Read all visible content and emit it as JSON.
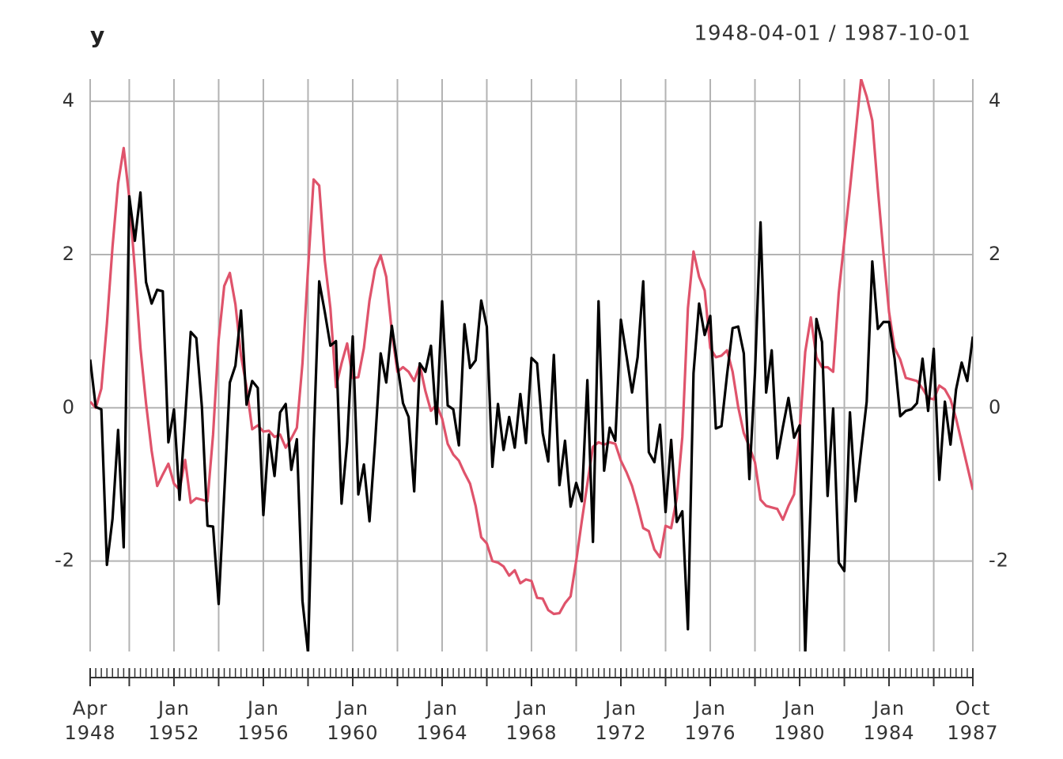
{
  "chart_data": {
    "type": "line",
    "title": "y",
    "subtitle": "1948-04-01 / 1987-10-01",
    "x": [
      "1948-04",
      "1948-07",
      "1948-10",
      "1949-01",
      "1949-04",
      "1949-07",
      "1949-10",
      "1950-01",
      "1950-04",
      "1950-07",
      "1950-10",
      "1951-01",
      "1951-04",
      "1951-07",
      "1951-10",
      "1952-01",
      "1952-04",
      "1952-07",
      "1952-10",
      "1953-01",
      "1953-04",
      "1953-07",
      "1953-10",
      "1954-01",
      "1954-04",
      "1954-07",
      "1954-10",
      "1955-01",
      "1955-04",
      "1955-07",
      "1955-10",
      "1956-01",
      "1956-04",
      "1956-07",
      "1956-10",
      "1957-01",
      "1957-04",
      "1957-07",
      "1957-10",
      "1958-01",
      "1958-04",
      "1958-07",
      "1958-10",
      "1959-01",
      "1959-04",
      "1959-07",
      "1959-10",
      "1960-01",
      "1960-04",
      "1960-07",
      "1960-10",
      "1961-01",
      "1961-04",
      "1961-07",
      "1961-10",
      "1962-01",
      "1962-04",
      "1962-07",
      "1962-10",
      "1963-01",
      "1963-04",
      "1963-07",
      "1963-10",
      "1964-01",
      "1964-04",
      "1964-07",
      "1964-10",
      "1965-01",
      "1965-04",
      "1965-07",
      "1965-10",
      "1966-01",
      "1966-04",
      "1966-07",
      "1966-10",
      "1967-01",
      "1967-04",
      "1967-07",
      "1967-10",
      "1968-01",
      "1968-04",
      "1968-07",
      "1968-10",
      "1969-01",
      "1969-04",
      "1969-07",
      "1969-10",
      "1970-01",
      "1970-04",
      "1970-07",
      "1970-10",
      "1971-01",
      "1971-04",
      "1971-07",
      "1971-10",
      "1972-01",
      "1972-04",
      "1972-07",
      "1972-10",
      "1973-01",
      "1973-04",
      "1973-07",
      "1973-10",
      "1974-01",
      "1974-04",
      "1974-07",
      "1974-10",
      "1975-01",
      "1975-04",
      "1975-07",
      "1975-10",
      "1976-01",
      "1976-04",
      "1976-07",
      "1976-10",
      "1977-01",
      "1977-04",
      "1977-07",
      "1977-10",
      "1978-01",
      "1978-04",
      "1978-07",
      "1978-10",
      "1979-01",
      "1979-04",
      "1979-07",
      "1979-10",
      "1980-01",
      "1980-04",
      "1980-07",
      "1980-10",
      "1981-01",
      "1981-04",
      "1981-07",
      "1981-10",
      "1982-01",
      "1982-04",
      "1982-07",
      "1982-10",
      "1983-01",
      "1983-04",
      "1983-07",
      "1983-10",
      "1984-01",
      "1984-04",
      "1984-07",
      "1984-10",
      "1985-01",
      "1985-04",
      "1985-07",
      "1985-10",
      "1986-01",
      "1986-04",
      "1986-07",
      "1986-10",
      "1987-01",
      "1987-04",
      "1987-07",
      "1987-10"
    ],
    "series": [
      {
        "color": "#DF536B",
        "values": [
          0.08,
          0.0,
          0.25,
          1.1,
          2.1,
          2.93,
          3.39,
          2.74,
          1.8,
          0.78,
          0.06,
          -0.56,
          -1.02,
          -0.87,
          -0.73,
          -0.99,
          -1.07,
          -0.68,
          -1.24,
          -1.18,
          -1.2,
          -1.22,
          -0.35,
          0.89,
          1.59,
          1.76,
          1.35,
          0.68,
          0.27,
          -0.28,
          -0.23,
          -0.31,
          -0.3,
          -0.38,
          -0.35,
          -0.52,
          -0.4,
          -0.26,
          0.58,
          1.81,
          2.98,
          2.9,
          1.92,
          1.3,
          0.27,
          0.58,
          0.84,
          0.39,
          0.4,
          0.78,
          1.4,
          1.81,
          1.99,
          1.71,
          0.99,
          0.47,
          0.53,
          0.47,
          0.35,
          0.56,
          0.22,
          -0.04,
          0.04,
          -0.14,
          -0.47,
          -0.61,
          -0.69,
          -0.85,
          -0.99,
          -1.28,
          -1.69,
          -1.77,
          -2.0,
          -2.02,
          -2.07,
          -2.19,
          -2.12,
          -2.29,
          -2.24,
          -2.26,
          -2.48,
          -2.49,
          -2.64,
          -2.69,
          -2.68,
          -2.55,
          -2.46,
          -2.0,
          -1.48,
          -0.99,
          -0.51,
          -0.45,
          -0.48,
          -0.45,
          -0.47,
          -0.69,
          -0.84,
          -1.02,
          -1.28,
          -1.57,
          -1.61,
          -1.85,
          -1.95,
          -1.54,
          -1.57,
          -1.18,
          -0.38,
          1.3,
          2.04,
          1.71,
          1.53,
          0.78,
          0.66,
          0.68,
          0.75,
          0.47,
          0.01,
          -0.33,
          -0.51,
          -0.71,
          -1.2,
          -1.28,
          -1.3,
          -1.32,
          -1.46,
          -1.28,
          -1.13,
          -0.3,
          0.73,
          1.18,
          0.66,
          0.53,
          0.53,
          0.47,
          1.5,
          2.18,
          2.85,
          3.57,
          4.29,
          4.06,
          3.75,
          2.85,
          2.02,
          1.25,
          0.78,
          0.63,
          0.39,
          0.37,
          0.35,
          0.25,
          0.13,
          0.11,
          0.29,
          0.24,
          0.11,
          -0.14,
          -0.45,
          -0.76,
          -1.07
        ]
      },
      {
        "color": "#000000",
        "values": [
          0.63,
          0.01,
          -0.02,
          -2.05,
          -1.45,
          -0.29,
          -1.82,
          2.76,
          2.18,
          2.81,
          1.64,
          1.36,
          1.54,
          1.52,
          -0.45,
          -0.02,
          -1.2,
          -0.14,
          0.99,
          0.91,
          0.01,
          -1.54,
          -1.55,
          -2.56,
          -1.12,
          0.33,
          0.55,
          1.27,
          0.04,
          0.35,
          0.26,
          -1.4,
          -0.35,
          -0.89,
          -0.06,
          0.05,
          -0.81,
          -0.41,
          -2.52,
          -3.2,
          -0.45,
          1.65,
          1.25,
          0.81,
          0.87,
          -1.25,
          -0.45,
          0.93,
          -1.13,
          -0.74,
          -1.48,
          -0.45,
          0.71,
          0.33,
          1.07,
          0.56,
          0.06,
          -0.12,
          -1.09,
          0.58,
          0.47,
          0.81,
          -0.21,
          1.39,
          0.03,
          -0.02,
          -0.49,
          1.09,
          0.52,
          0.62,
          1.4,
          1.06,
          -0.77,
          0.05,
          -0.55,
          -0.12,
          -0.52,
          0.18,
          -0.46,
          0.65,
          0.58,
          -0.33,
          -0.7,
          0.69,
          -1.01,
          -0.43,
          -1.29,
          -0.98,
          -1.22,
          0.36,
          -1.75,
          1.39,
          -0.82,
          -0.26,
          -0.43,
          1.15,
          0.68,
          0.2,
          0.66,
          1.65,
          -0.58,
          -0.71,
          -0.22,
          -1.36,
          -0.42,
          -1.49,
          -1.35,
          -2.89,
          0.45,
          1.36,
          0.95,
          1.2,
          -0.27,
          -0.24,
          0.43,
          1.04,
          1.06,
          0.71,
          -0.93,
          0.45,
          2.42,
          0.2,
          0.75,
          -0.66,
          -0.25,
          0.13,
          -0.39,
          -0.23,
          -3.2,
          -1.18,
          1.16,
          0.86,
          -1.15,
          -0.01,
          -2.02,
          -2.13,
          -0.06,
          -1.22,
          -0.56,
          0.08,
          1.91,
          1.03,
          1.12,
          1.12,
          0.64,
          -0.11,
          -0.04,
          -0.02,
          0.06,
          0.64,
          -0.04,
          0.77,
          -0.94,
          0.08,
          -0.48,
          0.24,
          0.59,
          0.35,
          0.93
        ]
      }
    ],
    "ylim": [
      -3.18,
      4.29
    ],
    "yticks": [
      4,
      2,
      0,
      -2
    ],
    "xticks": [
      {
        "value": "1948-04",
        "label": "Apr 1948"
      },
      {
        "value": "1952-01",
        "label": "Jan 1952"
      },
      {
        "value": "1956-01",
        "label": "Jan 1956"
      },
      {
        "value": "1960-01",
        "label": "Jan 1960"
      },
      {
        "value": "1964-01",
        "label": "Jan 1964"
      },
      {
        "value": "1968-01",
        "label": "Jan 1968"
      },
      {
        "value": "1972-01",
        "label": "Jan 1972"
      },
      {
        "value": "1976-01",
        "label": "Jan 1976"
      },
      {
        "value": "1980-01",
        "label": "Jan 1980"
      },
      {
        "value": "1984-01",
        "label": "Jan 1984"
      },
      {
        "value": "1987-10",
        "label": "Oct 1987"
      }
    ],
    "xgrid": [
      "1950-01",
      "1954-01",
      "1958-01",
      "1962-01",
      "1966-01",
      "1970-01",
      "1974-01",
      "1978-01",
      "1982-01",
      "1986-01"
    ],
    "grid": true
  }
}
